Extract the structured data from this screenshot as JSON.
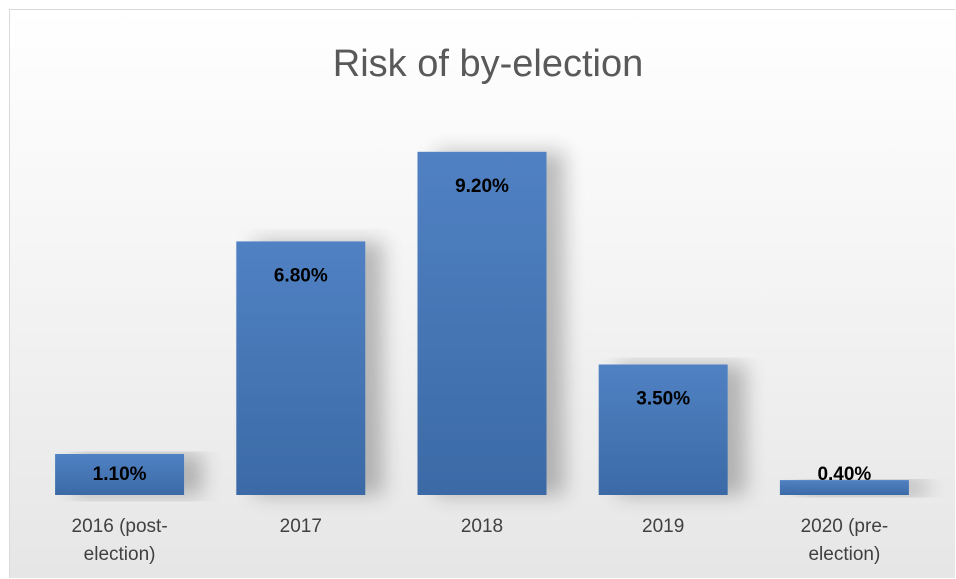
{
  "chart_data": {
    "type": "bar",
    "title": "Risk of by-election",
    "categories": [
      [
        "2016 (post-",
        "election)"
      ],
      [
        "2017"
      ],
      [
        "2018"
      ],
      [
        "2019"
      ],
      [
        "2020 (pre-",
        "election)"
      ]
    ],
    "values": [
      1.1,
      6.8,
      9.2,
      3.5,
      0.4
    ],
    "data_labels": [
      "1.10%",
      "6.80%",
      "9.20%",
      "3.50%",
      "0.40%"
    ],
    "unit": "%",
    "ylim": [
      0,
      10
    ],
    "xlabel": "",
    "ylabel": "",
    "grid": false,
    "legend": "none",
    "colors": {
      "bar_top": "#5181c3",
      "bar_bottom": "#3b6aa6",
      "title": "#595959",
      "ticks": "#404040"
    }
  }
}
